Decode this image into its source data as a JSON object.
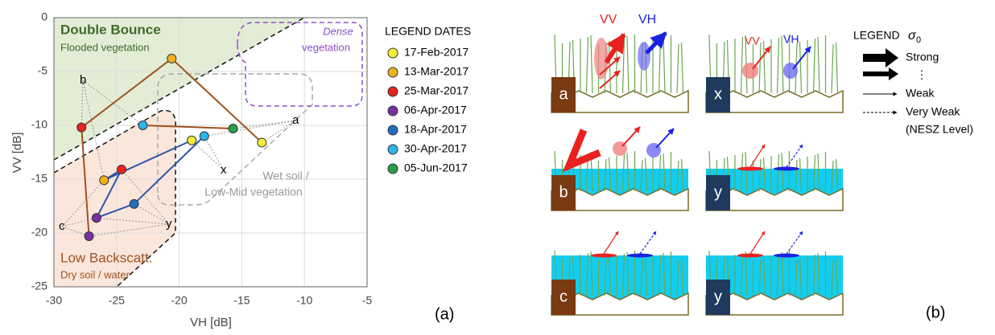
{
  "chart_data": {
    "type": "line",
    "xlabel": "VH [dB]",
    "ylabel": "VV [dB]",
    "xlim": [
      -30,
      -5
    ],
    "ylim": [
      -25,
      0
    ],
    "xticks": [
      -30,
      -25,
      -20,
      -15,
      -10,
      -5
    ],
    "yticks": [
      0,
      -5,
      -10,
      -15,
      -20,
      -25
    ],
    "grid": true,
    "legend_title": "LEGEND DATES",
    "dates": [
      "17-Feb-2017",
      "13-Mar-2017",
      "25-Mar-2017",
      "06-Apr-2017",
      "18-Apr-2017",
      "30-Apr-2017",
      "05-Jun-2017"
    ],
    "date_colors": [
      "#f4ee38",
      "#f0b21c",
      "#e6241f",
      "#7b2fa0",
      "#1f6fbf",
      "#2cb3e8",
      "#2a9e48"
    ],
    "series": [
      {
        "color": "#a0521c",
        "x": [
          -13.4,
          -20.6,
          -27.8,
          -27.2,
          null,
          -22.9,
          -15.7
        ],
        "values": [
          -11.6,
          -3.8,
          -10.2,
          -20.3,
          null,
          -10.0,
          -10.3
        ]
      },
      {
        "color": "#2f55a8",
        "x": [
          -19.0,
          -26.0,
          -24.6,
          -26.6,
          -23.6,
          -18.0,
          null
        ],
        "values": [
          -11.4,
          -15.1,
          -14.1,
          -18.6,
          -17.3,
          -11.0,
          null
        ]
      }
    ],
    "annotations": {
      "double_bounce": "Double Bounce",
      "flooded": "Flooded vegetation",
      "dense_1": "Dense",
      "dense_2": "vegetation",
      "wet_1": "Wet soil /",
      "wet_2": "Low-Mid vegetation",
      "low": "Low Backscatt.",
      "dry": "Dry soil / water",
      "a": "a",
      "b": "b",
      "c": "c",
      "x": "x",
      "y": "y",
      "panel": "(a)"
    }
  },
  "diagram": {
    "panels": [
      "a",
      "x",
      "b",
      "y",
      "c",
      "y"
    ],
    "vv": "VV",
    "vh": "VH",
    "legend_title": "LEGEND",
    "sigma": "σ",
    "sigma_sub": "0",
    "strong": "Strong",
    "dots": "⋮",
    "weak": "Weak",
    "very_weak": "Very Weak",
    "nesz": "(NESZ Level)",
    "panel": "(b)"
  }
}
